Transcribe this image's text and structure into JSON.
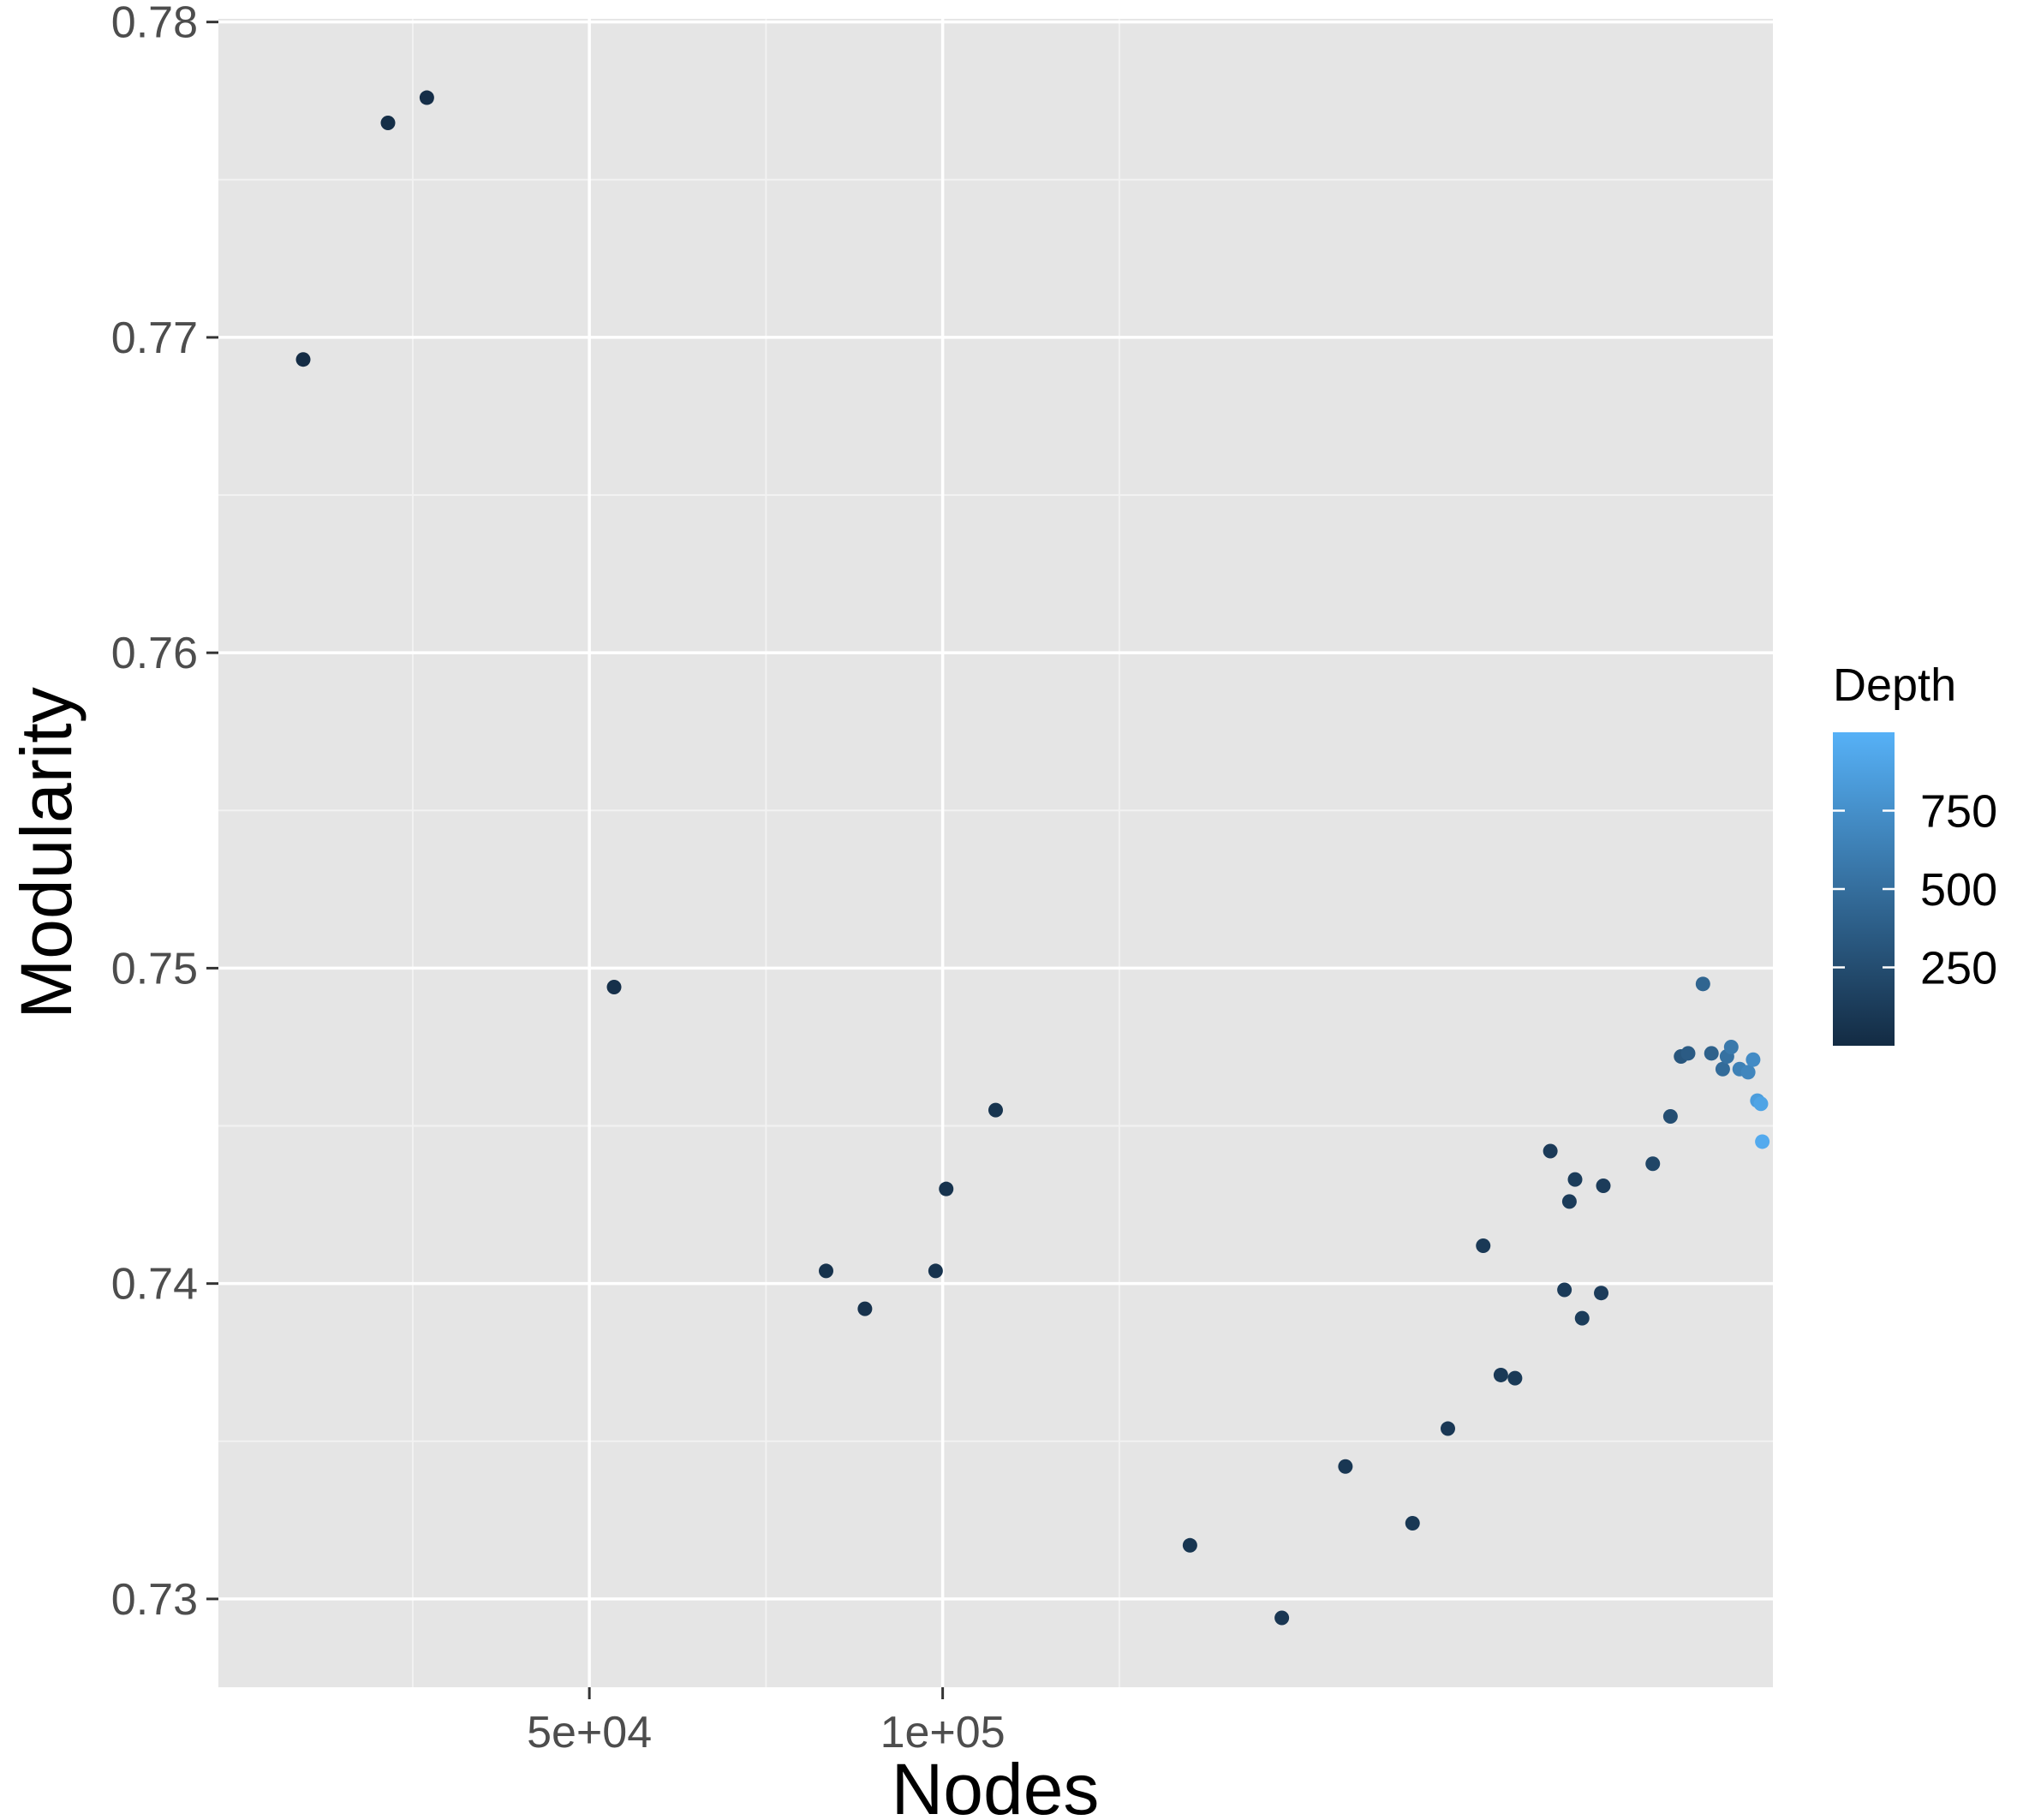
{
  "chart_data": {
    "type": "scatter",
    "xlabel": "Nodes",
    "ylabel": "Modularity",
    "xlim": [
      -2500,
      217500
    ],
    "ylim": [
      0.7272,
      0.7801
    ],
    "x_major_ticks": [
      50000,
      100000
    ],
    "x_tick_labels": [
      "5e+04",
      "1e+05"
    ],
    "x_minor_ticks": [
      25000,
      75000,
      125000
    ],
    "y_major_ticks": [
      0.73,
      0.74,
      0.75,
      0.76,
      0.77,
      0.78
    ],
    "y_tick_labels": [
      "0.73",
      "0.74",
      "0.75",
      "0.76",
      "0.77",
      "0.78"
    ],
    "y_minor_ticks": [
      0.735,
      0.745,
      0.755,
      0.765,
      0.775
    ],
    "grid": true,
    "background": "#e5e5e5",
    "legend": {
      "title": "Depth",
      "position": "right",
      "type": "colorbar",
      "range": [
        0,
        1000
      ],
      "breaks": [
        250,
        500,
        750
      ],
      "break_labels": [
        "250",
        "500",
        "750"
      ],
      "low_color": "#132B43",
      "high_color": "#56B1F7"
    },
    "points": [
      {
        "x": 9500,
        "y": 0.7693,
        "depth": 10
      },
      {
        "x": 21500,
        "y": 0.7768,
        "depth": 20
      },
      {
        "x": 27000,
        "y": 0.7776,
        "depth": 25
      },
      {
        "x": 53500,
        "y": 0.7494,
        "depth": 40
      },
      {
        "x": 83500,
        "y": 0.7404,
        "depth": 50
      },
      {
        "x": 89000,
        "y": 0.7392,
        "depth": 55
      },
      {
        "x": 99000,
        "y": 0.7404,
        "depth": 60
      },
      {
        "x": 100500,
        "y": 0.743,
        "depth": 60
      },
      {
        "x": 107500,
        "y": 0.7455,
        "depth": 65
      },
      {
        "x": 135000,
        "y": 0.7317,
        "depth": 80
      },
      {
        "x": 148000,
        "y": 0.7294,
        "depth": 85
      },
      {
        "x": 157000,
        "y": 0.7342,
        "depth": 90
      },
      {
        "x": 166500,
        "y": 0.7324,
        "depth": 95
      },
      {
        "x": 171500,
        "y": 0.7354,
        "depth": 100
      },
      {
        "x": 176500,
        "y": 0.7412,
        "depth": 105
      },
      {
        "x": 179000,
        "y": 0.7371,
        "depth": 110
      },
      {
        "x": 181000,
        "y": 0.737,
        "depth": 110
      },
      {
        "x": 186000,
        "y": 0.7442,
        "depth": 115
      },
      {
        "x": 188000,
        "y": 0.7398,
        "depth": 120
      },
      {
        "x": 188700,
        "y": 0.7426,
        "depth": 120
      },
      {
        "x": 189500,
        "y": 0.7433,
        "depth": 125
      },
      {
        "x": 190500,
        "y": 0.7389,
        "depth": 125
      },
      {
        "x": 193200,
        "y": 0.7397,
        "depth": 130
      },
      {
        "x": 193500,
        "y": 0.7431,
        "depth": 130
      },
      {
        "x": 200500,
        "y": 0.7438,
        "depth": 200
      },
      {
        "x": 203000,
        "y": 0.7453,
        "depth": 260
      },
      {
        "x": 204500,
        "y": 0.7472,
        "depth": 320
      },
      {
        "x": 205500,
        "y": 0.7473,
        "depth": 360
      },
      {
        "x": 207600,
        "y": 0.7495,
        "depth": 430
      },
      {
        "x": 208800,
        "y": 0.7473,
        "depth": 400
      },
      {
        "x": 210400,
        "y": 0.7468,
        "depth": 480
      },
      {
        "x": 211000,
        "y": 0.7472,
        "depth": 520
      },
      {
        "x": 211600,
        "y": 0.7475,
        "depth": 580
      },
      {
        "x": 212800,
        "y": 0.7468,
        "depth": 640
      },
      {
        "x": 214000,
        "y": 0.7467,
        "depth": 680
      },
      {
        "x": 214700,
        "y": 0.7471,
        "depth": 720
      },
      {
        "x": 215300,
        "y": 0.7458,
        "depth": 850
      },
      {
        "x": 215800,
        "y": 0.7457,
        "depth": 900
      },
      {
        "x": 216000,
        "y": 0.7445,
        "depth": 950
      }
    ]
  }
}
